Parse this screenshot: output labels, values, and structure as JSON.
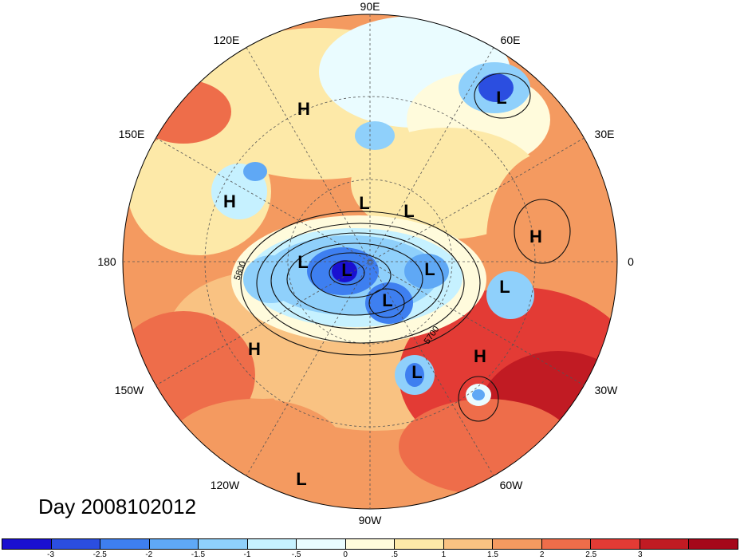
{
  "map": {
    "projection": "north polar stereographic",
    "longitude_labels": [
      "90E",
      "60E",
      "30E",
      "0",
      "30W",
      "60W",
      "90W",
      "120W",
      "150W",
      "180",
      "150E",
      "120E"
    ],
    "contour_labels": [
      "5800",
      "5700"
    ],
    "pressure_centers": [
      "H",
      "H",
      "L",
      "L",
      "L",
      "L",
      "L",
      "L",
      "L",
      "H",
      "L",
      "H",
      "L",
      "H",
      "L"
    ],
    "day_label": "Day 2008102012"
  },
  "colorbar": {
    "colors": [
      "#1a10d0",
      "#2b4ee0",
      "#3e7ff0",
      "#5fa8f5",
      "#8fd0fb",
      "#c6f1ff",
      "#eafcff",
      "#fffbdc",
      "#fde9a8",
      "#f9c282",
      "#f49a60",
      "#ee6d4a",
      "#e33b35",
      "#c11b23",
      "#a5081a"
    ],
    "tick_labels": [
      "-3",
      "-2.5",
      "-2",
      "-1.5",
      "-1",
      "-.5",
      "0",
      ".5",
      "1",
      "1.5",
      "2",
      "2.5",
      "3"
    ]
  }
}
